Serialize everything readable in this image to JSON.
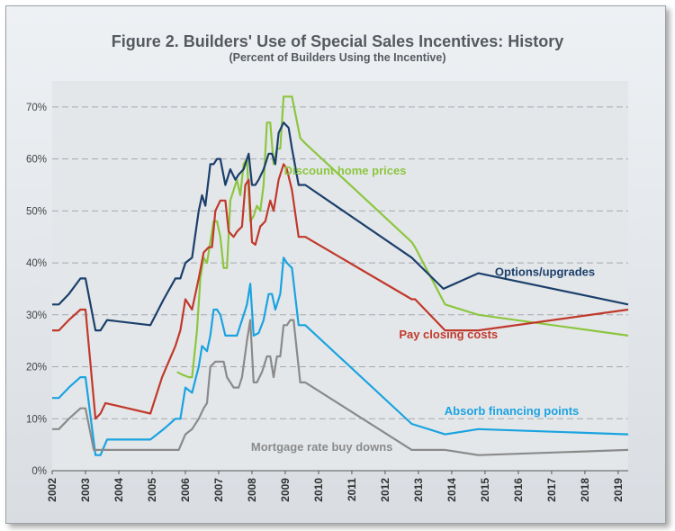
{
  "chart_data": {
    "type": "line",
    "title": "Figure 2.  Builders' Use of Special Sales Incentives: History",
    "subtitle": "(Percent of Builders Using the Incentive)",
    "xlabel": "",
    "ylabel": "",
    "xlim": [
      2002,
      2019.3
    ],
    "ylim": [
      0,
      75
    ],
    "x_ticks": [
      "2002",
      "2003",
      "2004",
      "2005",
      "2006",
      "2007",
      "2008",
      "2009",
      "2010",
      "2011",
      "2012",
      "2013",
      "2014",
      "2015",
      "2016",
      "2017",
      "2018",
      "2019"
    ],
    "y_ticks": [
      {
        "value": 0,
        "label": "0%"
      },
      {
        "value": 10,
        "label": "10%"
      },
      {
        "value": 20,
        "label": "20%"
      },
      {
        "value": 30,
        "label": "30%"
      },
      {
        "value": 40,
        "label": "40%"
      },
      {
        "value": 50,
        "label": "50%"
      },
      {
        "value": 60,
        "label": "60%"
      },
      {
        "value": 70,
        "label": "70%"
      }
    ],
    "grid": "horizontal-dashed",
    "series": [
      {
        "name": "Discount home prices",
        "color": "#8cc63f",
        "label_anchor": [
          2010.8,
          57
        ],
        "points": [
          [
            2005.75,
            19
          ],
          [
            2005.9,
            18.5
          ],
          [
            2006.1,
            18
          ],
          [
            2006.2,
            18
          ],
          [
            2006.35,
            27
          ],
          [
            2006.45,
            37
          ],
          [
            2006.55,
            41
          ],
          [
            2006.65,
            40
          ],
          [
            2006.75,
            44
          ],
          [
            2006.85,
            48
          ],
          [
            2006.95,
            48
          ],
          [
            2007.05,
            45
          ],
          [
            2007.15,
            39
          ],
          [
            2007.25,
            39
          ],
          [
            2007.35,
            52
          ],
          [
            2007.45,
            54
          ],
          [
            2007.55,
            56
          ],
          [
            2007.65,
            53
          ],
          [
            2007.75,
            59
          ],
          [
            2007.85,
            60
          ],
          [
            2007.95,
            48
          ],
          [
            2008.05,
            49
          ],
          [
            2008.15,
            51
          ],
          [
            2008.25,
            50
          ],
          [
            2008.35,
            55
          ],
          [
            2008.45,
            67
          ],
          [
            2008.55,
            67
          ],
          [
            2008.65,
            59
          ],
          [
            2008.75,
            62
          ],
          [
            2008.85,
            62
          ],
          [
            2008.95,
            72
          ],
          [
            2009.05,
            72
          ],
          [
            2009.2,
            72
          ],
          [
            2009.45,
            64
          ],
          [
            2009.6,
            63
          ],
          [
            2012.8,
            44
          ],
          [
            2012.9,
            43
          ],
          [
            2013.8,
            32
          ],
          [
            2014.8,
            30
          ],
          [
            2019.3,
            26
          ]
        ]
      },
      {
        "name": "Options/upgrades",
        "color": "#1b3f6b",
        "label_anchor": [
          2016.8,
          37.5
        ],
        "points": [
          [
            2002.0,
            32
          ],
          [
            2002.2,
            32
          ],
          [
            2002.5,
            34
          ],
          [
            2002.85,
            37
          ],
          [
            2003.0,
            37
          ],
          [
            2003.3,
            27
          ],
          [
            2003.45,
            27
          ],
          [
            2003.65,
            29
          ],
          [
            2004.95,
            28
          ],
          [
            2005.35,
            33
          ],
          [
            2005.7,
            37
          ],
          [
            2005.85,
            37
          ],
          [
            2006.0,
            40
          ],
          [
            2006.2,
            41
          ],
          [
            2006.4,
            50
          ],
          [
            2006.5,
            53
          ],
          [
            2006.6,
            51
          ],
          [
            2006.75,
            59
          ],
          [
            2006.85,
            59
          ],
          [
            2006.95,
            60
          ],
          [
            2007.05,
            60
          ],
          [
            2007.2,
            55
          ],
          [
            2007.35,
            58
          ],
          [
            2007.5,
            56
          ],
          [
            2007.6,
            57
          ],
          [
            2007.75,
            58
          ],
          [
            2007.9,
            61
          ],
          [
            2008.0,
            55
          ],
          [
            2008.1,
            55
          ],
          [
            2008.2,
            56
          ],
          [
            2008.35,
            58
          ],
          [
            2008.5,
            61
          ],
          [
            2008.6,
            61
          ],
          [
            2008.7,
            59
          ],
          [
            2008.8,
            65
          ],
          [
            2008.95,
            67
          ],
          [
            2009.1,
            66
          ],
          [
            2009.2,
            62
          ],
          [
            2009.4,
            55
          ],
          [
            2009.6,
            55
          ],
          [
            2012.8,
            41
          ],
          [
            2013.75,
            35
          ],
          [
            2014.8,
            38
          ],
          [
            2019.3,
            32
          ]
        ]
      },
      {
        "name": "Pay closing costs",
        "color": "#c0392b",
        "label_anchor": [
          2013.9,
          25.5
        ],
        "points": [
          [
            2002.0,
            27
          ],
          [
            2002.2,
            27
          ],
          [
            2002.5,
            29
          ],
          [
            2002.85,
            31
          ],
          [
            2003.0,
            31
          ],
          [
            2003.3,
            10
          ],
          [
            2003.45,
            11
          ],
          [
            2003.6,
            13
          ],
          [
            2004.95,
            11
          ],
          [
            2005.3,
            18
          ],
          [
            2005.7,
            24
          ],
          [
            2005.85,
            27
          ],
          [
            2006.0,
            33
          ],
          [
            2006.2,
            31
          ],
          [
            2006.4,
            37
          ],
          [
            2006.55,
            42
          ],
          [
            2006.7,
            43
          ],
          [
            2006.8,
            43
          ],
          [
            2006.9,
            50
          ],
          [
            2007.05,
            52
          ],
          [
            2007.2,
            52
          ],
          [
            2007.3,
            46
          ],
          [
            2007.45,
            45
          ],
          [
            2007.55,
            46
          ],
          [
            2007.7,
            47
          ],
          [
            2007.8,
            55
          ],
          [
            2007.9,
            56
          ],
          [
            2008.0,
            44
          ],
          [
            2008.1,
            43.5
          ],
          [
            2008.25,
            47
          ],
          [
            2008.4,
            48
          ],
          [
            2008.55,
            52
          ],
          [
            2008.65,
            50
          ],
          [
            2008.8,
            56
          ],
          [
            2008.95,
            59
          ],
          [
            2009.05,
            58
          ],
          [
            2009.2,
            54
          ],
          [
            2009.4,
            45
          ],
          [
            2009.6,
            45
          ],
          [
            2012.8,
            33
          ],
          [
            2012.9,
            33
          ],
          [
            2013.8,
            27
          ],
          [
            2014.8,
            27
          ],
          [
            2019.3,
            31
          ]
        ]
      },
      {
        "name": "Absorb  financing points",
        "color": "#1aa3e0",
        "label_anchor": [
          2015.8,
          10.7
        ],
        "points": [
          [
            2002.0,
            14
          ],
          [
            2002.2,
            14
          ],
          [
            2002.5,
            16
          ],
          [
            2002.85,
            18
          ],
          [
            2003.0,
            18
          ],
          [
            2003.3,
            3
          ],
          [
            2003.45,
            3
          ],
          [
            2003.65,
            6
          ],
          [
            2004.95,
            6
          ],
          [
            2005.35,
            8
          ],
          [
            2005.7,
            10
          ],
          [
            2005.85,
            10
          ],
          [
            2006.0,
            16
          ],
          [
            2006.2,
            15
          ],
          [
            2006.4,
            20
          ],
          [
            2006.5,
            24
          ],
          [
            2006.65,
            23
          ],
          [
            2006.75,
            26
          ],
          [
            2006.85,
            31
          ],
          [
            2006.95,
            31
          ],
          [
            2007.05,
            30
          ],
          [
            2007.2,
            26
          ],
          [
            2007.4,
            26
          ],
          [
            2007.55,
            26
          ],
          [
            2007.7,
            29
          ],
          [
            2007.85,
            32
          ],
          [
            2007.95,
            36
          ],
          [
            2008.05,
            26
          ],
          [
            2008.2,
            26.5
          ],
          [
            2008.35,
            29
          ],
          [
            2008.5,
            34
          ],
          [
            2008.6,
            34
          ],
          [
            2008.7,
            31
          ],
          [
            2008.85,
            34
          ],
          [
            2008.95,
            41
          ],
          [
            2009.05,
            40
          ],
          [
            2009.2,
            39
          ],
          [
            2009.4,
            28
          ],
          [
            2009.6,
            28
          ],
          [
            2012.8,
            9
          ],
          [
            2013.8,
            7
          ],
          [
            2014.8,
            8
          ],
          [
            2019.3,
            7
          ]
        ]
      },
      {
        "name": "Mortgage rate buy downs",
        "color": "#8a8a8a",
        "label_anchor": [
          2010.1,
          3.8
        ],
        "points": [
          [
            2002.0,
            8
          ],
          [
            2002.2,
            8
          ],
          [
            2002.5,
            10
          ],
          [
            2002.85,
            12
          ],
          [
            2003.0,
            12
          ],
          [
            2003.25,
            4
          ],
          [
            2003.5,
            4
          ],
          [
            2004.95,
            4
          ],
          [
            2005.35,
            4
          ],
          [
            2005.8,
            4
          ],
          [
            2006.0,
            7
          ],
          [
            2006.2,
            8
          ],
          [
            2006.4,
            10
          ],
          [
            2006.55,
            12
          ],
          [
            2006.65,
            13
          ],
          [
            2006.75,
            20
          ],
          [
            2006.9,
            21
          ],
          [
            2007.05,
            21
          ],
          [
            2007.15,
            21
          ],
          [
            2007.25,
            18
          ],
          [
            2007.35,
            17
          ],
          [
            2007.45,
            16
          ],
          [
            2007.6,
            16
          ],
          [
            2007.7,
            18
          ],
          [
            2007.85,
            25
          ],
          [
            2007.95,
            29
          ],
          [
            2008.05,
            17
          ],
          [
            2008.15,
            17
          ],
          [
            2008.3,
            19
          ],
          [
            2008.45,
            22
          ],
          [
            2008.55,
            22
          ],
          [
            2008.65,
            18
          ],
          [
            2008.75,
            22
          ],
          [
            2008.85,
            22
          ],
          [
            2008.95,
            28
          ],
          [
            2009.05,
            28
          ],
          [
            2009.15,
            29
          ],
          [
            2009.25,
            29
          ],
          [
            2009.45,
            17
          ],
          [
            2009.6,
            17
          ],
          [
            2012.8,
            4
          ],
          [
            2013.8,
            4
          ],
          [
            2014.8,
            3
          ],
          [
            2019.3,
            4
          ]
        ]
      }
    ]
  }
}
